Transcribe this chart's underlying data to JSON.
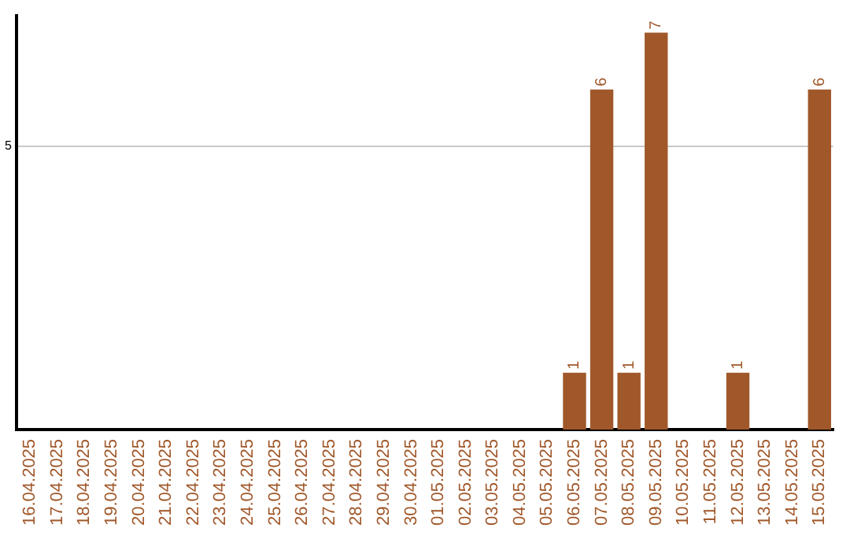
{
  "chart_data": {
    "type": "bar",
    "categories": [
      "16.04.2025",
      "17.04.2025",
      "18.04.2025",
      "19.04.2025",
      "20.04.2025",
      "21.04.2025",
      "22.04.2025",
      "23.04.2025",
      "24.04.2025",
      "25.04.2025",
      "26.04.2025",
      "27.04.2025",
      "28.04.2025",
      "29.04.2025",
      "30.04.2025",
      "01.05.2025",
      "02.05.2025",
      "03.05.2025",
      "04.05.2025",
      "05.05.2025",
      "06.05.2025",
      "07.05.2025",
      "08.05.2025",
      "09.05.2025",
      "10.05.2025",
      "11.05.2025",
      "12.05.2025",
      "13.05.2025",
      "14.05.2025",
      "15.05.2025"
    ],
    "values": [
      null,
      null,
      null,
      null,
      null,
      null,
      null,
      null,
      null,
      null,
      null,
      null,
      null,
      null,
      null,
      null,
      null,
      null,
      null,
      null,
      1,
      6,
      1,
      7,
      null,
      null,
      1,
      null,
      null,
      6
    ],
    "color": "#a0582a",
    "ylim": [
      0,
      7.3
    ],
    "yticks": [
      5
    ],
    "grid": "y",
    "data_labels": true,
    "legend": false
  }
}
